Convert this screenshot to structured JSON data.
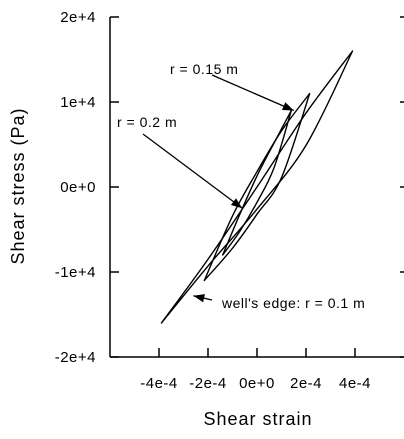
{
  "chart_data": {
    "type": "line",
    "title": "",
    "xlabel": "Shear strain",
    "ylabel": "Shear stress (Pa)",
    "xlim": [
      -0.0006,
      0.0006
    ],
    "ylim": [
      -20000,
      20000
    ],
    "grid": false,
    "x_ticks": [
      {
        "value": -0.0004,
        "label": "-4e-4"
      },
      {
        "value": -0.0002,
        "label": "-2e-4"
      },
      {
        "value": 0.0,
        "label": "0e+0"
      },
      {
        "value": 0.0002,
        "label": "2e-4"
      },
      {
        "value": 0.0004,
        "label": "4e-4"
      }
    ],
    "y_ticks": [
      {
        "value": 20000,
        "label": "2e+4"
      },
      {
        "value": 10000,
        "label": "1e+4"
      },
      {
        "value": 0,
        "label": "0e+0"
      },
      {
        "value": -10000,
        "label": "-1e+4"
      },
      {
        "value": -20000,
        "label": "-2e+4"
      }
    ],
    "series": [
      {
        "label": "well's edge: r = 0.1 m",
        "color": "#000000",
        "loading": {
          "x": [
            -0.00039,
            -0.0002,
            0.0,
            0.0002,
            0.00039
          ],
          "y": [
            -16000,
            -8500,
            0,
            8700,
            16000
          ]
        },
        "unloading": {
          "x": [
            0.00039,
            0.0002,
            0.0,
            -0.0002,
            -0.00039
          ],
          "y": [
            16000,
            4900,
            -2600,
            -9300,
            -16000
          ]
        }
      },
      {
        "label": "r = 0.15 m",
        "color": "#000000",
        "loading": {
          "x": [
            -0.000215,
            -0.0001,
            0.0,
            0.0001,
            0.000215
          ],
          "y": [
            -11000,
            -3400,
            1800,
            6600,
            11000
          ]
        },
        "unloading": {
          "x": [
            0.000215,
            0.0001,
            0.0,
            -0.0001,
            -0.000215
          ],
          "y": [
            11000,
            1100,
            -3200,
            -7200,
            -11000
          ]
        }
      },
      {
        "label": "r = 0.2 m",
        "color": "#000000",
        "loading": {
          "x": [
            -0.00014,
            -7e-05,
            0.0,
            7e-05,
            0.00014
          ],
          "y": [
            -8000,
            -3200,
            1300,
            5200,
            9000
          ]
        },
        "unloading": {
          "x": [
            0.00014,
            7e-05,
            0.0,
            -7e-05,
            -0.00014
          ],
          "y": [
            9000,
            2300,
            -1800,
            -5200,
            -8000
          ]
        }
      }
    ],
    "annotations": [
      {
        "text": "r = 0.15 m",
        "arrow_to": {
          "x": 0.00015,
          "y": 9000
        }
      },
      {
        "text": "r = 0.2 m",
        "arrow_to": {
          "x": -6e-05,
          "y": -2500
        }
      },
      {
        "text": "well's edge: r = 0.1 m",
        "arrow_to": {
          "x": -0.00026,
          "y": -12800
        }
      }
    ]
  }
}
